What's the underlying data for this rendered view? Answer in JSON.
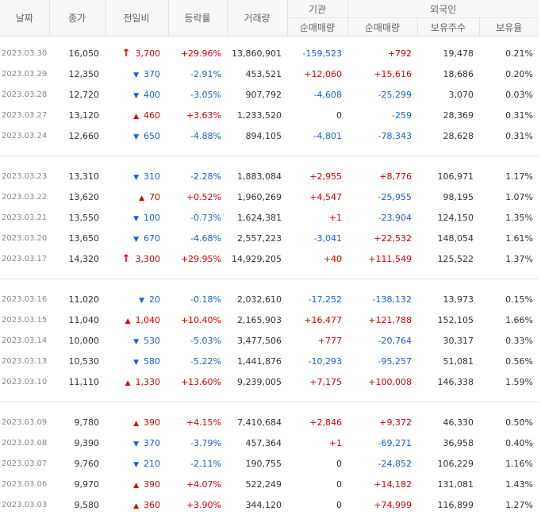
{
  "headers": {
    "date": "날짜",
    "close": "종가",
    "change": "전일비",
    "rate": "등락률",
    "volume": "거래량",
    "institution": "기관",
    "foreign": "외국인",
    "inst_net": "순매매량",
    "foreign_net": "순매매량",
    "foreign_hold": "보유주수",
    "foreign_ratio": "보유율"
  },
  "colors": {
    "up": "#d60000",
    "down": "#1a5fd9",
    "header_bg": "#f7f7f7"
  },
  "groups": [
    [
      {
        "date": "2023.03.30",
        "close": "16,050",
        "dir": "upper",
        "change": "3,700",
        "rate": "+29.96%",
        "volume": "13,860,901",
        "inst": "-159,523",
        "fnet": "+792",
        "fhold": "19,478",
        "fratio": "0.21%"
      },
      {
        "date": "2023.03.29",
        "close": "12,350",
        "dir": "down",
        "change": "370",
        "rate": "-2.91%",
        "volume": "453,521",
        "inst": "+12,060",
        "fnet": "+15,616",
        "fhold": "18,686",
        "fratio": "0.20%"
      },
      {
        "date": "2023.03.28",
        "close": "12,720",
        "dir": "down",
        "change": "400",
        "rate": "-3.05%",
        "volume": "907,792",
        "inst": "-4,608",
        "fnet": "-25,299",
        "fhold": "3,070",
        "fratio": "0.03%"
      },
      {
        "date": "2023.03.27",
        "close": "13,120",
        "dir": "up",
        "change": "460",
        "rate": "+3.63%",
        "volume": "1,233,520",
        "inst": "0",
        "fnet": "-259",
        "fhold": "28,369",
        "fratio": "0.31%"
      },
      {
        "date": "2023.03.24",
        "close": "12,660",
        "dir": "down",
        "change": "650",
        "rate": "-4.88%",
        "volume": "894,105",
        "inst": "-4,801",
        "fnet": "-78,343",
        "fhold": "28,628",
        "fratio": "0.31%"
      }
    ],
    [
      {
        "date": "2023.03.23",
        "close": "13,310",
        "dir": "down",
        "change": "310",
        "rate": "-2.28%",
        "volume": "1,883,084",
        "inst": "+2,955",
        "fnet": "+8,776",
        "fhold": "106,971",
        "fratio": "1.17%"
      },
      {
        "date": "2023.03.22",
        "close": "13,620",
        "dir": "up",
        "change": "70",
        "rate": "+0.52%",
        "volume": "1,960,269",
        "inst": "+4,547",
        "fnet": "-25,955",
        "fhold": "98,195",
        "fratio": "1.07%"
      },
      {
        "date": "2023.03.21",
        "close": "13,550",
        "dir": "down",
        "change": "100",
        "rate": "-0.73%",
        "volume": "1,624,381",
        "inst": "+1",
        "fnet": "-23,904",
        "fhold": "124,150",
        "fratio": "1.35%"
      },
      {
        "date": "2023.03.20",
        "close": "13,650",
        "dir": "down",
        "change": "670",
        "rate": "-4.68%",
        "volume": "2,557,223",
        "inst": "-3,041",
        "fnet": "+22,532",
        "fhold": "148,054",
        "fratio": "1.61%"
      },
      {
        "date": "2023.03.17",
        "close": "14,320",
        "dir": "upper",
        "change": "3,300",
        "rate": "+29.95%",
        "volume": "14,929,205",
        "inst": "+40",
        "fnet": "+111,549",
        "fhold": "125,522",
        "fratio": "1.37%"
      }
    ],
    [
      {
        "date": "2023.03.16",
        "close": "11,020",
        "dir": "down",
        "change": "20",
        "rate": "-0.18%",
        "volume": "2,032,610",
        "inst": "-17,252",
        "fnet": "-138,132",
        "fhold": "13,973",
        "fratio": "0.15%"
      },
      {
        "date": "2023.03.15",
        "close": "11,040",
        "dir": "up",
        "change": "1,040",
        "rate": "+10.40%",
        "volume": "2,165,903",
        "inst": "+16,477",
        "fnet": "+121,788",
        "fhold": "152,105",
        "fratio": "1.66%"
      },
      {
        "date": "2023.03.14",
        "close": "10,000",
        "dir": "down",
        "change": "530",
        "rate": "-5.03%",
        "volume": "3,477,506",
        "inst": "+777",
        "fnet": "-20,764",
        "fhold": "30,317",
        "fratio": "0.33%"
      },
      {
        "date": "2023.03.13",
        "close": "10,530",
        "dir": "down",
        "change": "580",
        "rate": "-5.22%",
        "volume": "1,441,876",
        "inst": "-10,293",
        "fnet": "-95,257",
        "fhold": "51,081",
        "fratio": "0.56%"
      },
      {
        "date": "2023.03.10",
        "close": "11,110",
        "dir": "up",
        "change": "1,330",
        "rate": "+13.60%",
        "volume": "9,239,005",
        "inst": "+7,175",
        "fnet": "+100,008",
        "fhold": "146,338",
        "fratio": "1.59%"
      }
    ],
    [
      {
        "date": "2023.03.09",
        "close": "9,780",
        "dir": "up",
        "change": "390",
        "rate": "+4.15%",
        "volume": "7,410,684",
        "inst": "+2,846",
        "fnet": "+9,372",
        "fhold": "46,330",
        "fratio": "0.50%"
      },
      {
        "date": "2023.03.08",
        "close": "9,390",
        "dir": "down",
        "change": "370",
        "rate": "-3.79%",
        "volume": "457,364",
        "inst": "+1",
        "fnet": "-69,271",
        "fhold": "36,958",
        "fratio": "0.40%"
      },
      {
        "date": "2023.03.07",
        "close": "9,760",
        "dir": "down",
        "change": "210",
        "rate": "-2.11%",
        "volume": "190,755",
        "inst": "0",
        "fnet": "-24,852",
        "fhold": "106,229",
        "fratio": "1.16%"
      },
      {
        "date": "2023.03.06",
        "close": "9,970",
        "dir": "up",
        "change": "390",
        "rate": "+4.07%",
        "volume": "522,249",
        "inst": "0",
        "fnet": "+14,182",
        "fhold": "131,081",
        "fratio": "1.43%"
      },
      {
        "date": "2023.03.03",
        "close": "9,580",
        "dir": "up",
        "change": "360",
        "rate": "+3.90%",
        "volume": "344,120",
        "inst": "0",
        "fnet": "+74,999",
        "fhold": "116,899",
        "fratio": "1.27%"
      }
    ]
  ]
}
